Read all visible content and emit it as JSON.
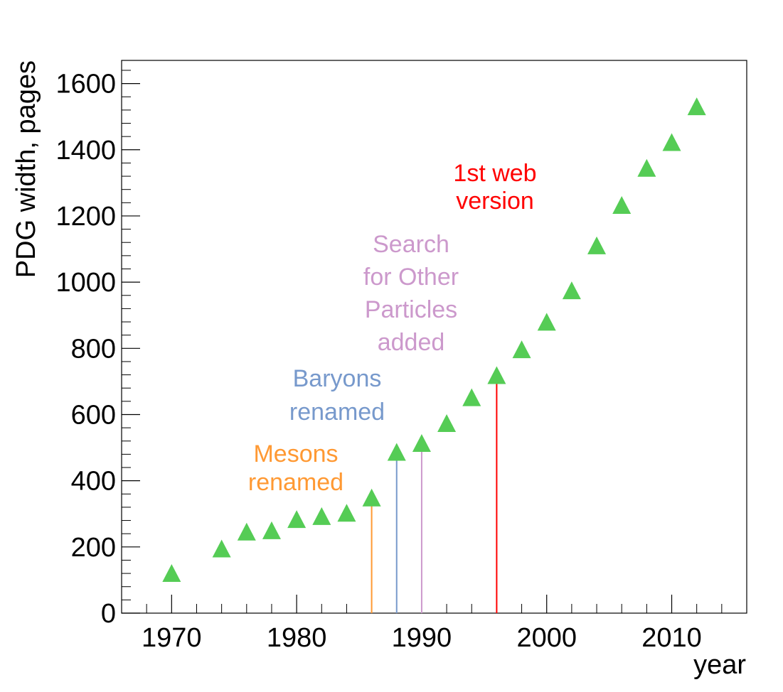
{
  "chart_data": {
    "type": "scatter",
    "xlabel": "year",
    "ylabel": "PDG width, pages",
    "xlim": [
      1966,
      2016
    ],
    "ylim": [
      0,
      1670
    ],
    "x_ticks": [
      1970,
      1980,
      1990,
      2000,
      2010
    ],
    "y_ticks": [
      0,
      200,
      400,
      600,
      800,
      1000,
      1200,
      1400,
      1600
    ],
    "grid": false,
    "marker": "triangle-up",
    "marker_color": "#55cc55",
    "series": [
      {
        "x": [
          1970,
          1974,
          1976,
          1978,
          1980,
          1982,
          1984,
          1986,
          1988,
          1990,
          1992,
          1994,
          1996,
          1998,
          2000,
          2002,
          2004,
          2006,
          2008,
          2010,
          2012
        ],
        "y": [
          118,
          192,
          243,
          247,
          281,
          290,
          300,
          346,
          484,
          511,
          571,
          649,
          716,
          794,
          877,
          972,
          1108,
          1230,
          1342,
          1420,
          1528
        ]
      }
    ],
    "annotations": [
      {
        "lines": [
          "Mesons",
          "renamed"
        ],
        "x": 1986,
        "color": "#ff9933",
        "line_to_y": 346
      },
      {
        "lines": [
          "Baryons",
          "renamed"
        ],
        "x": 1988,
        "color": "#7799cc",
        "line_to_y": 484
      },
      {
        "lines": [
          "Search",
          "for Other",
          "Particles",
          "added"
        ],
        "x": 1990,
        "color": "#cc99cc",
        "line_to_y": 511
      },
      {
        "lines": [
          "1st web",
          "version"
        ],
        "x": 1996,
        "color": "#ff0000",
        "line_to_y": 716
      }
    ]
  }
}
